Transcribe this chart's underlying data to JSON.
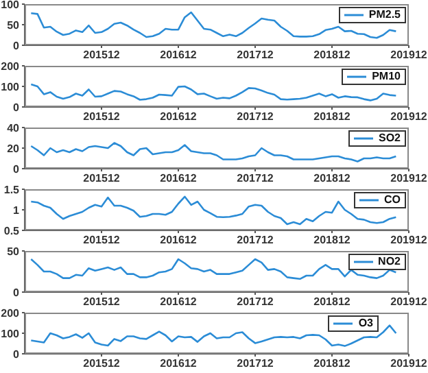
{
  "chart_data": [
    {
      "type": "line",
      "x": [
        "2015-01",
        "2015-02",
        "2015-03",
        "2015-04",
        "2015-05",
        "2015-06",
        "2015-07",
        "2015-08",
        "2015-09",
        "2015-10",
        "2015-11",
        "2015-12",
        "2016-01",
        "2016-02",
        "2016-03",
        "2016-04",
        "2016-05",
        "2016-06",
        "2016-07",
        "2016-08",
        "2016-09",
        "2016-10",
        "2016-11",
        "2016-12",
        "2017-01",
        "2017-02",
        "2017-03",
        "2017-04",
        "2017-05",
        "2017-06",
        "2017-07",
        "2017-08",
        "2017-09",
        "2017-10",
        "2017-11",
        "2017-12",
        "2018-01",
        "2018-02",
        "2018-03",
        "2018-04",
        "2018-05",
        "2018-06",
        "2018-07",
        "2018-08",
        "2018-09",
        "2018-10",
        "2018-11",
        "2018-12",
        "2019-01",
        "2019-02",
        "2019-03",
        "2019-04",
        "2019-05",
        "2019-06",
        "2019-07",
        "2019-08",
        "2019-09",
        "2019-10"
      ],
      "xlim": [
        "2014-12",
        "2019-12"
      ],
      "xticks": [
        {
          "value": "2015-12",
          "label": "201512"
        },
        {
          "value": "2016-12",
          "label": "201612"
        },
        {
          "value": "2017-12",
          "label": "201712"
        },
        {
          "value": "2018-12",
          "label": "201812"
        },
        {
          "value": "2019-12",
          "label": "201912"
        }
      ],
      "ylim": [
        0,
        100
      ],
      "yticks": [
        0,
        50,
        100
      ],
      "legend": "top right",
      "series": [
        {
          "name": "PM2.5",
          "color": "#2b8cd6",
          "values": [
            78,
            76,
            43,
            45,
            33,
            25,
            28,
            36,
            32,
            48,
            30,
            32,
            40,
            52,
            55,
            48,
            38,
            30,
            20,
            22,
            28,
            40,
            38,
            38,
            68,
            80,
            60,
            40,
            38,
            30,
            22,
            26,
            22,
            30,
            42,
            53,
            65,
            62,
            60,
            45,
            35,
            22,
            21,
            21,
            22,
            27,
            37,
            40,
            45,
            34,
            35,
            28,
            27,
            20,
            18,
            25,
            37,
            34
          ]
        }
      ]
    },
    {
      "type": "line",
      "x": [
        "2015-01",
        "2015-02",
        "2015-03",
        "2015-04",
        "2015-05",
        "2015-06",
        "2015-07",
        "2015-08",
        "2015-09",
        "2015-10",
        "2015-11",
        "2015-12",
        "2016-01",
        "2016-02",
        "2016-03",
        "2016-04",
        "2016-05",
        "2016-06",
        "2016-07",
        "2016-08",
        "2016-09",
        "2016-10",
        "2016-11",
        "2016-12",
        "2017-01",
        "2017-02",
        "2017-03",
        "2017-04",
        "2017-05",
        "2017-06",
        "2017-07",
        "2017-08",
        "2017-09",
        "2017-10",
        "2017-11",
        "2017-12",
        "2018-01",
        "2018-02",
        "2018-03",
        "2018-04",
        "2018-05",
        "2018-06",
        "2018-07",
        "2018-08",
        "2018-09",
        "2018-10",
        "2018-11",
        "2018-12",
        "2019-01",
        "2019-02",
        "2019-03",
        "2019-04",
        "2019-05",
        "2019-06",
        "2019-07",
        "2019-08",
        "2019-09",
        "2019-10"
      ],
      "xlim": [
        "2014-12",
        "2019-12"
      ],
      "xticks": [
        {
          "value": "2015-12",
          "label": "201512"
        },
        {
          "value": "2016-12",
          "label": "201612"
        },
        {
          "value": "2017-12",
          "label": "201712"
        },
        {
          "value": "2018-12",
          "label": "201812"
        },
        {
          "value": "2019-12",
          "label": "201912"
        }
      ],
      "ylim": [
        0,
        200
      ],
      "yticks": [
        0,
        100,
        200
      ],
      "legend": "top right",
      "series": [
        {
          "name": "PM10",
          "color": "#2b8cd6",
          "values": [
            110,
            100,
            62,
            72,
            50,
            40,
            48,
            65,
            55,
            85,
            50,
            52,
            65,
            78,
            75,
            62,
            52,
            35,
            38,
            45,
            60,
            58,
            55,
            98,
            100,
            85,
            62,
            65,
            52,
            40,
            45,
            42,
            55,
            72,
            92,
            90,
            80,
            68,
            60,
            38,
            36,
            38,
            40,
            45,
            55,
            65,
            52,
            62,
            45,
            52,
            48,
            47,
            38,
            32,
            40,
            65,
            58,
            55
          ]
        }
      ]
    },
    {
      "type": "line",
      "x": [
        "2015-01",
        "2015-02",
        "2015-03",
        "2015-04",
        "2015-05",
        "2015-06",
        "2015-07",
        "2015-08",
        "2015-09",
        "2015-10",
        "2015-11",
        "2015-12",
        "2016-01",
        "2016-02",
        "2016-03",
        "2016-04",
        "2016-05",
        "2016-06",
        "2016-07",
        "2016-08",
        "2016-09",
        "2016-10",
        "2016-11",
        "2016-12",
        "2017-01",
        "2017-02",
        "2017-03",
        "2017-04",
        "2017-05",
        "2017-06",
        "2017-07",
        "2017-08",
        "2017-09",
        "2017-10",
        "2017-11",
        "2017-12",
        "2018-01",
        "2018-02",
        "2018-03",
        "2018-04",
        "2018-05",
        "2018-06",
        "2018-07",
        "2018-08",
        "2018-09",
        "2018-10",
        "2018-11",
        "2018-12",
        "2019-01",
        "2019-02",
        "2019-03",
        "2019-04",
        "2019-05",
        "2019-06",
        "2019-07",
        "2019-08",
        "2019-09",
        "2019-10"
      ],
      "xlim": [
        "2014-12",
        "2019-12"
      ],
      "xticks": [
        {
          "value": "2015-12",
          "label": "201512"
        },
        {
          "value": "2016-12",
          "label": "201612"
        },
        {
          "value": "2017-12",
          "label": "201712"
        },
        {
          "value": "2018-12",
          "label": "201812"
        },
        {
          "value": "2019-12",
          "label": "201912"
        }
      ],
      "ylim": [
        0,
        40
      ],
      "yticks": [
        0,
        20,
        40
      ],
      "legend": "top right",
      "series": [
        {
          "name": "SO2",
          "color": "#2b8cd6",
          "values": [
            22,
            18,
            13,
            20,
            16,
            18,
            16,
            19,
            17,
            21,
            22,
            21,
            20,
            25,
            22,
            16,
            13,
            19,
            20,
            14,
            15,
            16,
            16,
            18,
            23,
            17,
            16,
            15,
            15,
            13,
            9,
            9,
            9,
            10,
            12,
            13,
            20,
            16,
            13,
            13,
            12,
            9,
            9,
            9,
            9,
            10,
            11,
            12,
            12,
            10,
            9,
            7,
            10,
            10,
            11,
            10,
            10,
            12
          ]
        }
      ]
    },
    {
      "type": "line",
      "x": [
        "2015-01",
        "2015-02",
        "2015-03",
        "2015-04",
        "2015-05",
        "2015-06",
        "2015-07",
        "2015-08",
        "2015-09",
        "2015-10",
        "2015-11",
        "2015-12",
        "2016-01",
        "2016-02",
        "2016-03",
        "2016-04",
        "2016-05",
        "2016-06",
        "2016-07",
        "2016-08",
        "2016-09",
        "2016-10",
        "2016-11",
        "2016-12",
        "2017-01",
        "2017-02",
        "2017-03",
        "2017-04",
        "2017-05",
        "2017-06",
        "2017-07",
        "2017-08",
        "2017-09",
        "2017-10",
        "2017-11",
        "2017-12",
        "2018-01",
        "2018-02",
        "2018-03",
        "2018-04",
        "2018-05",
        "2018-06",
        "2018-07",
        "2018-08",
        "2018-09",
        "2018-10",
        "2018-11",
        "2018-12",
        "2019-01",
        "2019-02",
        "2019-03",
        "2019-04",
        "2019-05",
        "2019-06",
        "2019-07",
        "2019-08",
        "2019-09",
        "2019-10"
      ],
      "xlim": [
        "2014-12",
        "2019-12"
      ],
      "xticks": [
        {
          "value": "2015-12",
          "label": "201512"
        },
        {
          "value": "2016-12",
          "label": "201612"
        },
        {
          "value": "2017-12",
          "label": "201712"
        },
        {
          "value": "2018-12",
          "label": "201812"
        },
        {
          "value": "2019-12",
          "label": "201912"
        }
      ],
      "ylim": [
        0.5,
        1.5
      ],
      "yticks": [
        0.5,
        1,
        1.5
      ],
      "legend": "top right",
      "series": [
        {
          "name": "CO",
          "color": "#2b8cd6",
          "values": [
            1.2,
            1.18,
            1.1,
            1.05,
            0.9,
            0.78,
            0.85,
            0.9,
            0.95,
            1.05,
            1.12,
            1.08,
            1.3,
            1.1,
            1.1,
            1.05,
            0.98,
            0.83,
            0.85,
            0.9,
            0.9,
            0.88,
            0.95,
            1.15,
            1.32,
            1.12,
            1.2,
            1.0,
            0.92,
            0.83,
            0.82,
            0.83,
            0.86,
            0.9,
            1.08,
            1.12,
            1.1,
            0.95,
            0.85,
            0.8,
            0.65,
            0.7,
            0.65,
            0.78,
            0.72,
            0.85,
            0.95,
            0.93,
            1.2,
            1.0,
            0.9,
            0.78,
            0.76,
            0.7,
            0.68,
            0.7,
            0.78,
            0.82
          ]
        }
      ]
    },
    {
      "type": "line",
      "x": [
        "2015-01",
        "2015-02",
        "2015-03",
        "2015-04",
        "2015-05",
        "2015-06",
        "2015-07",
        "2015-08",
        "2015-09",
        "2015-10",
        "2015-11",
        "2015-12",
        "2016-01",
        "2016-02",
        "2016-03",
        "2016-04",
        "2016-05",
        "2016-06",
        "2016-07",
        "2016-08",
        "2016-09",
        "2016-10",
        "2016-11",
        "2016-12",
        "2017-01",
        "2017-02",
        "2017-03",
        "2017-04",
        "2017-05",
        "2017-06",
        "2017-07",
        "2017-08",
        "2017-09",
        "2017-10",
        "2017-11",
        "2017-12",
        "2018-01",
        "2018-02",
        "2018-03",
        "2018-04",
        "2018-05",
        "2018-06",
        "2018-07",
        "2018-08",
        "2018-09",
        "2018-10",
        "2018-11",
        "2018-12",
        "2019-01",
        "2019-02",
        "2019-03",
        "2019-04",
        "2019-05",
        "2019-06",
        "2019-07",
        "2019-08",
        "2019-09",
        "2019-10"
      ],
      "xlim": [
        "2014-12",
        "2019-12"
      ],
      "xticks": [
        {
          "value": "2015-12",
          "label": "201512"
        },
        {
          "value": "2016-12",
          "label": "201612"
        },
        {
          "value": "2017-12",
          "label": "201712"
        },
        {
          "value": "2018-12",
          "label": "201812"
        },
        {
          "value": "2019-12",
          "label": "201912"
        }
      ],
      "ylim": [
        0,
        50
      ],
      "yticks": [
        0,
        50
      ],
      "legend": "top right",
      "series": [
        {
          "name": "NO2",
          "color": "#2b8cd6",
          "values": [
            40,
            33,
            25,
            25,
            22,
            17,
            17,
            21,
            20,
            29,
            26,
            28,
            30,
            27,
            30,
            22,
            22,
            18,
            18,
            20,
            24,
            25,
            28,
            40,
            35,
            29,
            28,
            25,
            27,
            22,
            22,
            22,
            24,
            26,
            33,
            40,
            36,
            27,
            28,
            25,
            18,
            17,
            16,
            20,
            20,
            28,
            33,
            28,
            28,
            19,
            27,
            21,
            20,
            18,
            17,
            20,
            27,
            24
          ]
        }
      ]
    },
    {
      "type": "line",
      "x": [
        "2015-01",
        "2015-02",
        "2015-03",
        "2015-04",
        "2015-05",
        "2015-06",
        "2015-07",
        "2015-08",
        "2015-09",
        "2015-10",
        "2015-11",
        "2015-12",
        "2016-01",
        "2016-02",
        "2016-03",
        "2016-04",
        "2016-05",
        "2016-06",
        "2016-07",
        "2016-08",
        "2016-09",
        "2016-10",
        "2016-11",
        "2016-12",
        "2017-01",
        "2017-02",
        "2017-03",
        "2017-04",
        "2017-05",
        "2017-06",
        "2017-07",
        "2017-08",
        "2017-09",
        "2017-10",
        "2017-11",
        "2017-12",
        "2018-01",
        "2018-02",
        "2018-03",
        "2018-04",
        "2018-05",
        "2018-06",
        "2018-07",
        "2018-08",
        "2018-09",
        "2018-10",
        "2018-11",
        "2018-12",
        "2019-01",
        "2019-02",
        "2019-03",
        "2019-04",
        "2019-05",
        "2019-06",
        "2019-07",
        "2019-08",
        "2019-09",
        "2019-10"
      ],
      "xlim": [
        "2014-12",
        "2019-12"
      ],
      "xticks": [
        {
          "value": "2015-12",
          "label": "201512"
        },
        {
          "value": "2016-12",
          "label": "201612"
        },
        {
          "value": "2017-12",
          "label": "201712"
        },
        {
          "value": "2018-12",
          "label": "201812"
        },
        {
          "value": "2019-12",
          "label": "201912"
        }
      ],
      "ylim": [
        0,
        200
      ],
      "yticks": [
        0,
        100,
        200
      ],
      "legend": "top",
      "series": [
        {
          "name": "O3",
          "color": "#2b8cd6",
          "values": [
            65,
            60,
            55,
            100,
            90,
            75,
            82,
            95,
            78,
            100,
            55,
            45,
            40,
            72,
            62,
            85,
            85,
            75,
            72,
            90,
            108,
            90,
            60,
            85,
            80,
            82,
            58,
            85,
            100,
            75,
            80,
            80,
            100,
            105,
            75,
            52,
            60,
            70,
            80,
            82,
            80,
            82,
            75,
            90,
            92,
            90,
            70,
            40,
            45,
            38,
            50,
            65,
            80,
            82,
            80,
            105,
            138,
            100
          ]
        }
      ]
    }
  ]
}
